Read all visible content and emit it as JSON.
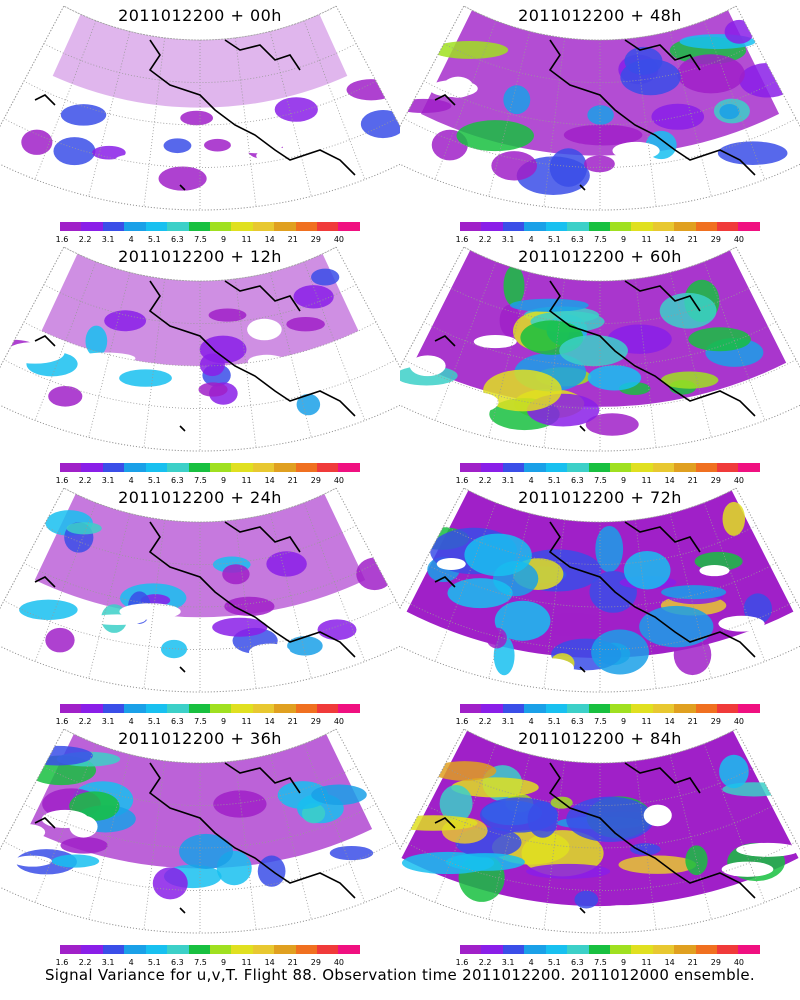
{
  "panels": [
    {
      "title": "2011012200 + 00h",
      "level": 0.08
    },
    {
      "title": "2011012200 + 48h",
      "level": 0.55
    },
    {
      "title": "2011012200 + 12h",
      "level": 0.25
    },
    {
      "title": "2011012200 + 60h",
      "level": 0.65
    },
    {
      "title": "2011012200 + 24h",
      "level": 0.35
    },
    {
      "title": "2011012200 + 72h",
      "level": 0.75
    },
    {
      "title": "2011012200 + 36h",
      "level": 0.45
    },
    {
      "title": "2011012200 + 84h",
      "level": 0.82
    }
  ],
  "colorbar": {
    "colors": [
      "#a020c8",
      "#8a1ee8",
      "#3a4ee8",
      "#1aa0e8",
      "#18c0f0",
      "#3cd0c8",
      "#18c040",
      "#a0e020",
      "#e0e020",
      "#e8c830",
      "#e0a020",
      "#f07020",
      "#f03a3a",
      "#f01080"
    ],
    "ticks": [
      "1.6",
      "2.2",
      "3.1",
      "4",
      "5.1",
      "6.3",
      "7.5",
      "9",
      "11",
      "14",
      "21",
      "29",
      "40"
    ]
  },
  "footer": "Signal Variance for u,v,T. Flight 88. Observation time 2011012200. 2011012000 ensemble.",
  "colors": {
    "coast": "#000000",
    "grid": "#999999"
  }
}
